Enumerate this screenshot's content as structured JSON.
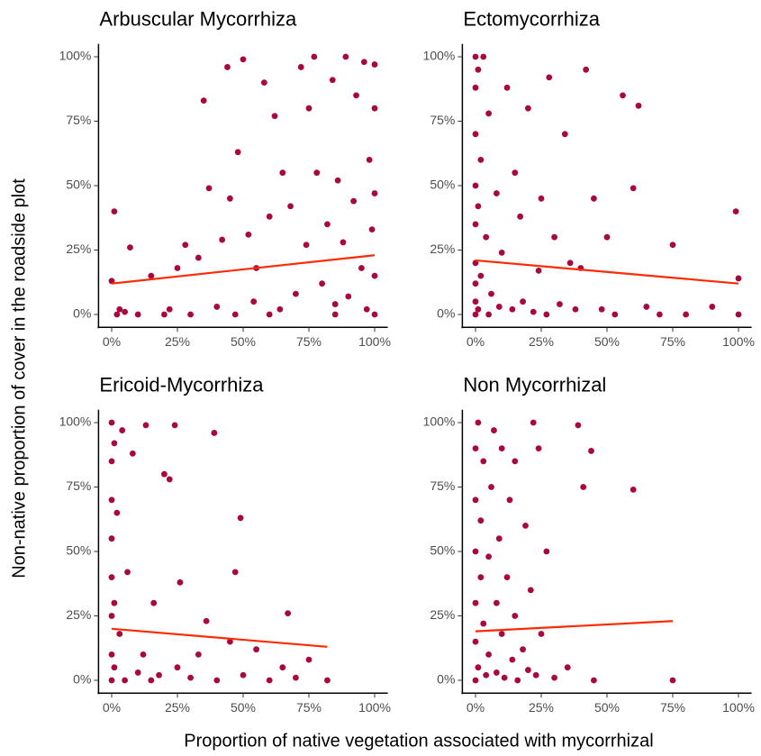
{
  "xlabel": "Proportion of native vegetation associated with mycorrhizal",
  "ylabel": "Non-native proportion of cover in the roadside plot",
  "chart_data": [
    {
      "type": "scatter",
      "title": "Arbuscular Mycorrhiza",
      "color": "#a8083e",
      "x": [
        0,
        1,
        2,
        5,
        7,
        10,
        15,
        20,
        22,
        25,
        28,
        30,
        33,
        35,
        37,
        40,
        42,
        44,
        45,
        47,
        48,
        50,
        52,
        54,
        55,
        58,
        60,
        62,
        64,
        65,
        68,
        70,
        72,
        74,
        75,
        77,
        78,
        80,
        82,
        84,
        85,
        86,
        88,
        89,
        90,
        92,
        93,
        95,
        96,
        97,
        98,
        99,
        100,
        100,
        100,
        100,
        100,
        3,
        60,
        85
      ],
      "y": [
        13,
        40,
        0,
        1,
        26,
        0,
        15,
        0,
        2,
        18,
        27,
        0,
        22,
        83,
        49,
        3,
        29,
        96,
        45,
        0,
        63,
        99,
        31,
        5,
        18,
        90,
        38,
        77,
        2,
        55,
        42,
        8,
        96,
        27,
        80,
        100,
        55,
        12,
        35,
        91,
        4,
        52,
        28,
        100,
        7,
        44,
        85,
        18,
        98,
        2,
        60,
        33,
        0,
        15,
        47,
        80,
        97,
        2,
        0,
        0
      ],
      "trend": {
        "x": [
          0,
          100
        ],
        "y": [
          12,
          23
        ],
        "color": "#ff2a00"
      },
      "xlim": [
        -5,
        105
      ],
      "ylim": [
        -5,
        105
      ],
      "xticks": [
        {
          "value": 0,
          "label": "0%"
        },
        {
          "value": 25,
          "label": "25%"
        },
        {
          "value": 50,
          "label": "50%"
        },
        {
          "value": 75,
          "label": "75%"
        },
        {
          "value": 100,
          "label": "100%"
        }
      ],
      "yticks": [
        {
          "value": 0,
          "label": "0%"
        },
        {
          "value": 25,
          "label": "25%"
        },
        {
          "value": 50,
          "label": "50%"
        },
        {
          "value": 75,
          "label": "75%"
        },
        {
          "value": 100,
          "label": "100%"
        }
      ]
    },
    {
      "type": "scatter",
      "title": "Ectomycorrhiza",
      "color": "#a8083e",
      "x": [
        0,
        0,
        0,
        0,
        0,
        0,
        0,
        0,
        0,
        1,
        1,
        1,
        2,
        2,
        3,
        4,
        5,
        5,
        6,
        8,
        9,
        10,
        12,
        14,
        15,
        17,
        18,
        20,
        22,
        24,
        25,
        27,
        28,
        30,
        32,
        34,
        36,
        38,
        40,
        42,
        45,
        48,
        50,
        53,
        56,
        60,
        62,
        65,
        70,
        75,
        80,
        90,
        99,
        100,
        100
      ],
      "y": [
        0,
        5,
        12,
        20,
        35,
        50,
        70,
        88,
        100,
        2,
        42,
        95,
        60,
        15,
        100,
        30,
        0,
        78,
        8,
        47,
        3,
        24,
        88,
        2,
        55,
        38,
        5,
        80,
        1,
        17,
        45,
        0,
        92,
        30,
        4,
        70,
        20,
        2,
        18,
        95,
        45,
        2,
        30,
        0,
        85,
        49,
        81,
        3,
        0,
        27,
        0,
        3,
        40,
        14,
        0
      ],
      "trend": {
        "x": [
          0,
          100
        ],
        "y": [
          21,
          12
        ],
        "color": "#ff2a00"
      },
      "xlim": [
        -5,
        105
      ],
      "ylim": [
        -5,
        105
      ],
      "xticks": [
        {
          "value": 0,
          "label": "0%"
        },
        {
          "value": 25,
          "label": "25%"
        },
        {
          "value": 50,
          "label": "50%"
        },
        {
          "value": 75,
          "label": "75%"
        },
        {
          "value": 100,
          "label": "100%"
        }
      ],
      "yticks": [
        {
          "value": 0,
          "label": "0%"
        },
        {
          "value": 25,
          "label": "25%"
        },
        {
          "value": 50,
          "label": "50%"
        },
        {
          "value": 75,
          "label": "75%"
        },
        {
          "value": 100,
          "label": "100%"
        }
      ]
    },
    {
      "type": "scatter",
      "title": "Ericoid-Mycorrhiza",
      "color": "#a8083e",
      "x": [
        0,
        0,
        0,
        0,
        0,
        0,
        0,
        0,
        1,
        1,
        1,
        2,
        3,
        4,
        5,
        6,
        8,
        10,
        12,
        13,
        15,
        16,
        18,
        20,
        22,
        24,
        25,
        26,
        30,
        33,
        36,
        39,
        40,
        45,
        47,
        49,
        50,
        55,
        60,
        65,
        67,
        70,
        75,
        82
      ],
      "y": [
        0,
        10,
        25,
        40,
        55,
        70,
        85,
        100,
        5,
        30,
        92,
        65,
        18,
        97,
        0,
        42,
        88,
        3,
        10,
        99,
        0,
        30,
        2,
        80,
        78,
        99,
        5,
        38,
        1,
        10,
        23,
        96,
        0,
        15,
        42,
        63,
        2,
        12,
        0,
        5,
        26,
        1,
        8,
        0
      ],
      "trend": {
        "x": [
          0,
          82
        ],
        "y": [
          20,
          13
        ],
        "color": "#ff2a00"
      },
      "xlim": [
        -5,
        105
      ],
      "ylim": [
        -5,
        105
      ],
      "xticks": [
        {
          "value": 0,
          "label": "0%"
        },
        {
          "value": 25,
          "label": "25%"
        },
        {
          "value": 50,
          "label": "50%"
        },
        {
          "value": 75,
          "label": "75%"
        },
        {
          "value": 100,
          "label": "100%"
        }
      ],
      "yticks": [
        {
          "value": 0,
          "label": "0%"
        },
        {
          "value": 25,
          "label": "25%"
        },
        {
          "value": 50,
          "label": "50%"
        },
        {
          "value": 75,
          "label": "75%"
        },
        {
          "value": 100,
          "label": "100%"
        }
      ]
    },
    {
      "type": "scatter",
      "title": "Non Mycorrhizal",
      "color": "#a8083e",
      "x": [
        0,
        0,
        0,
        0,
        0,
        0,
        1,
        1,
        2,
        2,
        3,
        3,
        4,
        5,
        5,
        6,
        7,
        8,
        8,
        9,
        10,
        10,
        11,
        12,
        13,
        14,
        15,
        15,
        16,
        18,
        19,
        20,
        21,
        22,
        23,
        24,
        25,
        27,
        30,
        35,
        39,
        41,
        44,
        45,
        60,
        75
      ],
      "y": [
        0,
        15,
        30,
        50,
        70,
        90,
        5,
        100,
        40,
        62,
        22,
        85,
        2,
        10,
        48,
        75,
        97,
        30,
        3,
        55,
        18,
        90,
        1,
        40,
        70,
        8,
        25,
        85,
        0,
        12,
        60,
        4,
        35,
        100,
        2,
        90,
        18,
        50,
        1,
        5,
        99,
        75,
        89,
        0,
        74,
        0
      ],
      "trend": {
        "x": [
          0,
          75
        ],
        "y": [
          19,
          23
        ],
        "color": "#ff2a00"
      },
      "xlim": [
        -5,
        105
      ],
      "ylim": [
        -5,
        105
      ],
      "xticks": [
        {
          "value": 0,
          "label": "0%"
        },
        {
          "value": 25,
          "label": "25%"
        },
        {
          "value": 50,
          "label": "50%"
        },
        {
          "value": 75,
          "label": "75%"
        },
        {
          "value": 100,
          "label": "100%"
        }
      ],
      "yticks": [
        {
          "value": 0,
          "label": "0%"
        },
        {
          "value": 25,
          "label": "25%"
        },
        {
          "value": 50,
          "label": "50%"
        },
        {
          "value": 75,
          "label": "75%"
        },
        {
          "value": 100,
          "label": "100%"
        }
      ]
    }
  ]
}
